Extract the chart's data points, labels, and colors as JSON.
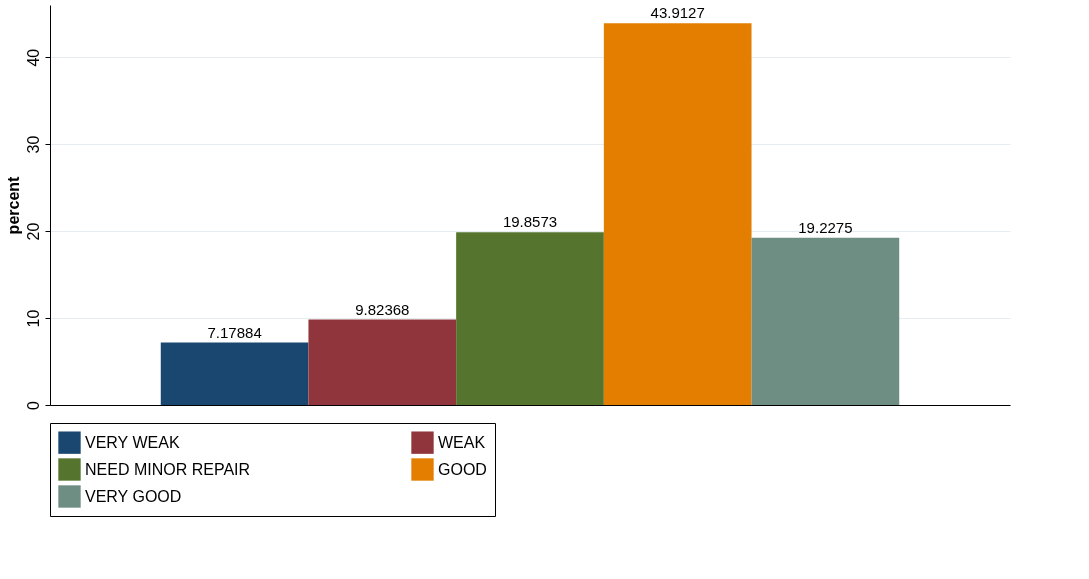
{
  "chart_data": {
    "type": "bar",
    "ylabel": "percent",
    "categories": [
      null
    ],
    "series": [
      {
        "name": "VERY WEAK",
        "color": "#1a476f",
        "values": [
          7.17884
        ]
      },
      {
        "name": "WEAK",
        "color": "#90353b",
        "values": [
          9.82368
        ]
      },
      {
        "name": "NEED MINOR REPAIR",
        "color": "#55752f",
        "values": [
          19.8573
        ]
      },
      {
        "name": "GOOD",
        "color": "#e37e00",
        "values": [
          43.9127
        ]
      },
      {
        "name": "VERY GOOD",
        "color": "#6e8e84",
        "values": [
          19.2275
        ]
      }
    ],
    "ylim": [
      0,
      46
    ],
    "yticks": [
      0,
      10,
      20,
      30,
      40
    ],
    "grid": "y",
    "legend": "bottom",
    "data_labels": true
  }
}
